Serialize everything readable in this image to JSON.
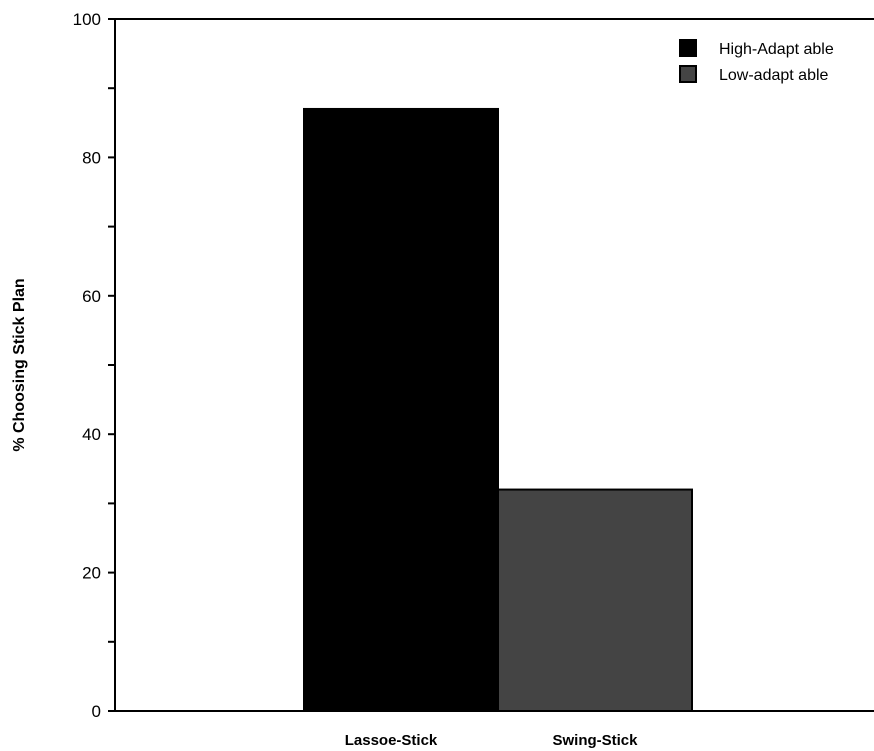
{
  "chart_data": {
    "type": "bar",
    "categories": [
      "Lassoe-Stick",
      "Swing-Stick"
    ],
    "series": [
      {
        "name": "High-Adaptable",
        "color": "#000000",
        "values": [
          87,
          null
        ]
      },
      {
        "name": "Low-adaptable",
        "color": "#444444",
        "values": [
          null,
          32
        ]
      }
    ],
    "ylabel": "%  Choosing  Stick  Plan",
    "xlabel": "",
    "ylim": [
      0,
      100
    ],
    "yticks": [
      0,
      20,
      40,
      60,
      80,
      100
    ],
    "ytick_labels": [
      "0",
      "20",
      "40",
      "60",
      "80",
      "100"
    ],
    "legend_labels": [
      "High-Adapt able",
      "Low-adapt able"
    ],
    "legend_position": "top-right",
    "grid": false
  }
}
